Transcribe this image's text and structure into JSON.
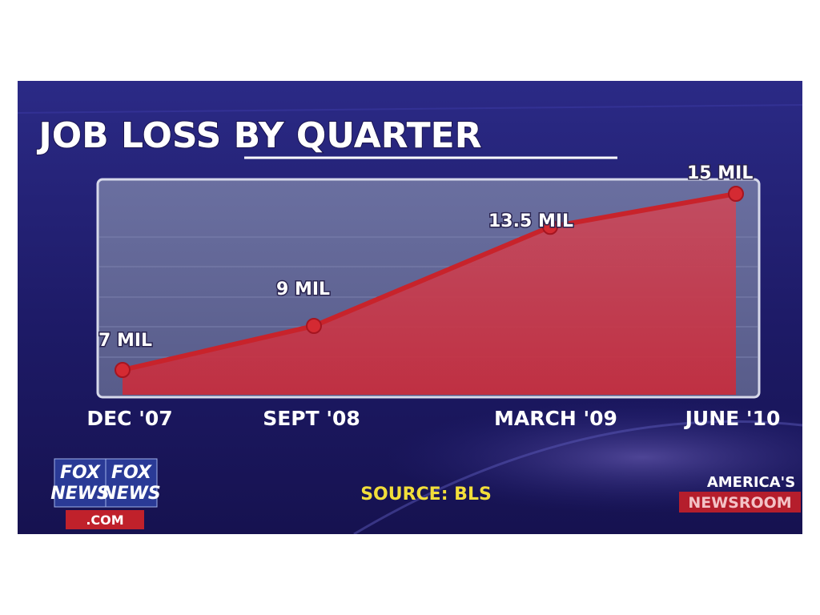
{
  "chart_data": {
    "type": "area",
    "title": "JOB LOSS BY QUARTER",
    "categories": [
      "DEC '07",
      "SEPT '08",
      "MARCH '09",
      "JUNE '10"
    ],
    "values": [
      7,
      9,
      13.5,
      15
    ],
    "data_labels": [
      "7 MIL",
      "9 MIL",
      "13.5 MIL",
      "15 MIL"
    ],
    "line_color": "#c8232b",
    "fill_color": "#c83a4a",
    "plot_background": "#5f6494",
    "source": "SOURCE: BLS"
  },
  "branding": {
    "network_logo_lines": [
      "FOX",
      "NEWS"
    ],
    "network_logo_suffix": ".COM",
    "show_logo_line1": "AMERICA'S",
    "show_logo_line2": "NEWSROOM"
  }
}
